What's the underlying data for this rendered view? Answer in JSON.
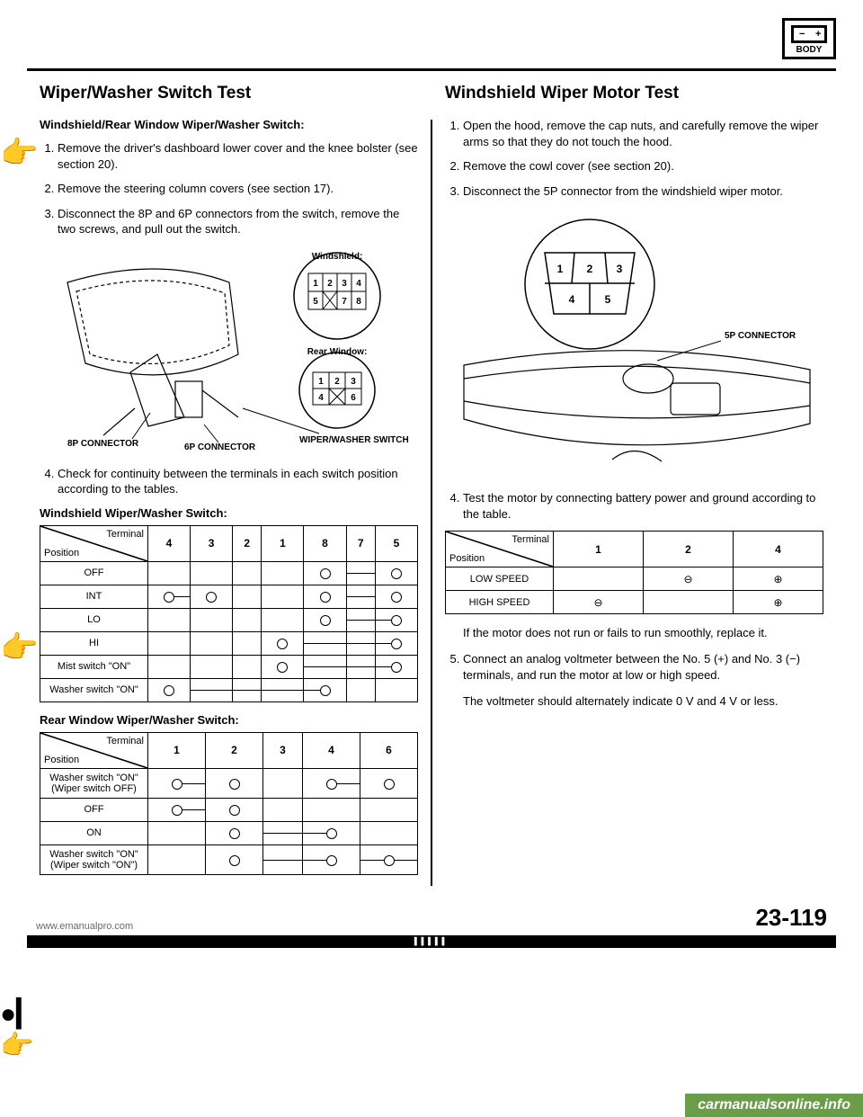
{
  "header_icon": {
    "label": "BODY",
    "minus": "−",
    "plus": "+"
  },
  "left": {
    "title": "Wiper/Washer Switch Test",
    "sub1": "Windshield/Rear Window Wiper/Washer Switch:",
    "steps": [
      "Remove the driver's dashboard lower cover and the knee bolster (see section 20).",
      "Remove the steering column covers (see section 17).",
      "Disconnect the 8P and 6P connectors from the switch, remove the two screws, and pull out the switch."
    ],
    "fig1": {
      "windshield_label": "Windshield:",
      "rear_label": "Rear Window:",
      "label_8p": "8P CONNECTOR",
      "label_6p": "6P CONNECTOR",
      "label_sw": "WIPER/WASHER SWITCH",
      "ws_terms": [
        "1",
        "2",
        "3",
        "4",
        "5",
        "",
        "7",
        "8"
      ],
      "rw_terms": [
        "1",
        "2",
        "3",
        "4",
        "",
        "6"
      ]
    },
    "step4": "Check for continuity between the terminals in each switch position according to the tables.",
    "table1": {
      "caption": "Windshield Wiper/Washer Switch:",
      "diag_term": "Terminal",
      "diag_pos": "Position",
      "cols": [
        "4",
        "3",
        "2",
        "1",
        "8",
        "7",
        "5"
      ],
      "rows": [
        {
          "label": "OFF",
          "cells": [
            "",
            "",
            "",
            "",
            "C",
            "L",
            "C"
          ]
        },
        {
          "label": "INT",
          "cells": [
            "CL",
            "C",
            "",
            "",
            "C",
            "L",
            "C"
          ]
        },
        {
          "label": "LO",
          "cells": [
            "",
            "",
            "",
            "",
            "C",
            "L",
            "LC"
          ]
        },
        {
          "label": "HI",
          "cells": [
            "",
            "",
            "",
            "C",
            "L",
            "L",
            "LC"
          ]
        },
        {
          "label": "Mist switch \"ON\"",
          "cells": [
            "",
            "",
            "",
            "C",
            "L",
            "L",
            "LC"
          ]
        },
        {
          "label": "Washer switch \"ON\"",
          "cells": [
            "C",
            "L",
            "L",
            "L",
            "LC",
            "",
            ""
          ]
        }
      ]
    },
    "table2": {
      "caption": "Rear Window Wiper/Washer Switch:",
      "diag_term": "Terminal",
      "diag_pos": "Position",
      "cols": [
        "1",
        "2",
        "3",
        "4",
        "6"
      ],
      "rows": [
        {
          "label": "Washer switch \"ON\" (Wiper switch OFF)",
          "cells": [
            "CL",
            "C",
            "",
            "CL",
            "C"
          ]
        },
        {
          "label": "OFF",
          "cells": [
            "CL",
            "C",
            "",
            "",
            ""
          ]
        },
        {
          "label": "ON",
          "cells": [
            "",
            "C",
            "L",
            "LC",
            ""
          ]
        },
        {
          "label": "Washer switch \"ON\" (Wiper switch \"ON\")",
          "cells": [
            "",
            "C",
            "L",
            "LC",
            "CLC"
          ]
        }
      ]
    }
  },
  "right": {
    "title": "Windshield Wiper Motor Test",
    "steps": [
      "Open the hood, remove the cap nuts, and carefully remove the wiper arms so that they do not touch the hood.",
      "Remove the cowl cover (see section 20).",
      "Disconnect the 5P connector from the windshield wiper motor."
    ],
    "fig": {
      "label_5p": "5P CONNECTOR",
      "terms": [
        "1",
        "2",
        "3",
        "4",
        "5"
      ]
    },
    "step4": "Test the motor by connecting battery power and ground according to the table.",
    "table": {
      "diag_term": "Terminal",
      "diag_pos": "Position",
      "cols": [
        "1",
        "2",
        "4"
      ],
      "rows": [
        {
          "label": "LOW SPEED",
          "cells": [
            "",
            "⊖",
            "⊕"
          ]
        },
        {
          "label": "HIGH SPEED",
          "cells": [
            "⊖",
            "",
            "⊕"
          ]
        }
      ]
    },
    "note4": "If the motor does not run or fails to run smoothly, replace it.",
    "step5": "Connect an analog voltmeter between the No. 5 (+) and No. 3 (−) terminals, and run the motor at low or high speed.",
    "note5": "The voltmeter should alternately indicate 0 V and 4 V or less."
  },
  "footer": {
    "link": "www.emanualpro.com",
    "page": "23-119",
    "watermark": "carmanualsonline.info"
  }
}
